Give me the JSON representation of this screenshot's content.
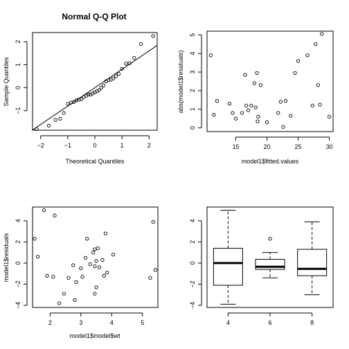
{
  "chart_data": [
    {
      "type": "scatter",
      "title": "Normal Q-Q Plot",
      "xlabel": "Theoretical Quantiles",
      "ylabel": "Sample Quantiles",
      "xlim": [
        -2.3,
        2.3
      ],
      "ylim": [
        -1.85,
        2.4
      ],
      "xticks": [
        -2,
        -1,
        0,
        1,
        2
      ],
      "yticks": [
        -1,
        0,
        1,
        2
      ],
      "ref_line": {
        "intercept": 0.0,
        "slope": 0.8
      },
      "points": [
        [
          -2.15,
          -1.8
        ],
        [
          -1.7,
          -1.65
        ],
        [
          -1.45,
          -1.4
        ],
        [
          -1.28,
          -1.35
        ],
        [
          -1.15,
          -1.1
        ],
        [
          -1.0,
          -0.7
        ],
        [
          -0.88,
          -0.65
        ],
        [
          -0.78,
          -0.62
        ],
        [
          -0.68,
          -0.55
        ],
        [
          -0.59,
          -0.52
        ],
        [
          -0.5,
          -0.5
        ],
        [
          -0.41,
          -0.4
        ],
        [
          -0.32,
          -0.35
        ],
        [
          -0.24,
          -0.3
        ],
        [
          -0.16,
          -0.3
        ],
        [
          -0.08,
          -0.25
        ],
        [
          0.0,
          -0.2
        ],
        [
          0.08,
          -0.15
        ],
        [
          0.16,
          -0.1
        ],
        [
          0.24,
          0.0
        ],
        [
          0.32,
          0.1
        ],
        [
          0.41,
          0.28
        ],
        [
          0.5,
          0.32
        ],
        [
          0.59,
          0.35
        ],
        [
          0.68,
          0.4
        ],
        [
          0.78,
          0.5
        ],
        [
          0.88,
          0.6
        ],
        [
          1.0,
          0.82
        ],
        [
          1.15,
          1.05
        ],
        [
          1.28,
          1.07
        ],
        [
          1.45,
          1.3
        ],
        [
          1.7,
          1.9
        ],
        [
          2.15,
          2.25
        ]
      ]
    },
    {
      "type": "scatter",
      "title": "",
      "xlabel": "model1$fitted.values",
      "ylabel": "abs(model1$residuals)",
      "xlim": [
        10.4,
        30.6
      ],
      "ylim": [
        -0.2,
        5.2
      ],
      "xticks": [
        15,
        20,
        25,
        30
      ],
      "yticks": [
        0,
        1,
        2,
        3,
        4,
        5
      ],
      "points": [
        [
          11.0,
          3.9
        ],
        [
          11.5,
          0.7
        ],
        [
          12.0,
          1.45
        ],
        [
          14.0,
          1.3
        ],
        [
          14.5,
          0.8
        ],
        [
          15.0,
          0.5
        ],
        [
          16.0,
          0.8
        ],
        [
          16.5,
          2.85
        ],
        [
          16.7,
          1.2
        ],
        [
          17.0,
          0.95
        ],
        [
          17.5,
          1.2
        ],
        [
          18.0,
          2.4
        ],
        [
          18.2,
          1.1
        ],
        [
          18.4,
          2.95
        ],
        [
          18.5,
          0.35
        ],
        [
          18.6,
          0.6
        ],
        [
          19.0,
          2.3
        ],
        [
          20.0,
          0.3
        ],
        [
          21.8,
          0.8
        ],
        [
          22.2,
          1.4
        ],
        [
          22.6,
          0.05
        ],
        [
          23.0,
          1.45
        ],
        [
          23.8,
          0.65
        ],
        [
          24.5,
          2.95
        ],
        [
          25.0,
          3.6
        ],
        [
          26.5,
          3.9
        ],
        [
          27.3,
          1.2
        ],
        [
          27.8,
          4.5
        ],
        [
          28.2,
          2.3
        ],
        [
          28.5,
          1.25
        ],
        [
          28.8,
          5.05
        ],
        [
          30.0,
          0.6
        ]
      ]
    },
    {
      "type": "scatter",
      "title": "",
      "xlabel": "model1$model$wt",
      "ylabel": "model1$residuals",
      "xlim": [
        1.43,
        5.5
      ],
      "ylim": [
        -4.2,
        5.3
      ],
      "xticks": [
        2,
        3,
        4,
        5
      ],
      "yticks": [
        -4,
        -2,
        0,
        2,
        4
      ],
      "points": [
        [
          1.5,
          2.3
        ],
        [
          1.6,
          0.6
        ],
        [
          1.8,
          5.0
        ],
        [
          1.9,
          -1.2
        ],
        [
          2.1,
          -1.3
        ],
        [
          2.15,
          4.5
        ],
        [
          2.3,
          -3.8
        ],
        [
          2.45,
          -2.9
        ],
        [
          2.6,
          -1.4
        ],
        [
          2.75,
          -0.2
        ],
        [
          2.8,
          -3.5
        ],
        [
          2.85,
          -1.8
        ],
        [
          3.0,
          -0.5
        ],
        [
          3.05,
          -1.3
        ],
        [
          3.15,
          0.5
        ],
        [
          3.2,
          2.3
        ],
        [
          3.3,
          -0.1
        ],
        [
          3.4,
          1.0
        ],
        [
          3.45,
          -0.3
        ],
        [
          3.45,
          1.3
        ],
        [
          3.5,
          0.2
        ],
        [
          3.45,
          -2.9
        ],
        [
          3.5,
          -2.3
        ],
        [
          3.55,
          1.4
        ],
        [
          3.6,
          -0.4
        ],
        [
          3.7,
          0.3
        ],
        [
          3.75,
          -1.2
        ],
        [
          3.8,
          2.8
        ],
        [
          3.85,
          -0.9
        ],
        [
          4.05,
          0.8
        ],
        [
          5.25,
          -1.4
        ],
        [
          5.35,
          3.9
        ],
        [
          5.42,
          -0.65
        ]
      ]
    },
    {
      "type": "boxplot",
      "title": "",
      "xlabel": "",
      "ylabel": "",
      "ylim": [
        -4.2,
        5.3
      ],
      "yticks": [
        -4,
        -2,
        0,
        2,
        4
      ],
      "categories": [
        "4",
        "6",
        "8"
      ],
      "boxes": [
        {
          "low": -3.9,
          "q1": -2.1,
          "median": 0.0,
          "q3": 1.4,
          "high": 5.0,
          "outliers": []
        },
        {
          "low": -1.4,
          "q1": -0.6,
          "median": -0.35,
          "q3": 0.35,
          "high": 1.0,
          "outliers": [
            2.3
          ]
        },
        {
          "low": -3.0,
          "q1": -1.2,
          "median": -0.55,
          "q3": 1.3,
          "high": 3.9,
          "outliers": []
        }
      ]
    }
  ]
}
